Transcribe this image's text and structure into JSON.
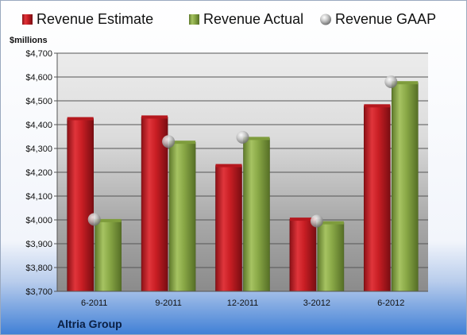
{
  "chart_data": {
    "type": "bar",
    "title": "",
    "unit_label": "$millions",
    "company": "Altria Group",
    "categories": [
      "6-2011",
      "9-2011",
      "12-2011",
      "3-2012",
      "6-2012"
    ],
    "series": [
      {
        "name": "Revenue Estimate",
        "kind": "bar",
        "color": "#d01f27",
        "values": [
          4425,
          4432,
          4228,
          4003,
          4479
        ]
      },
      {
        "name": "Revenue Actual",
        "kind": "bar",
        "color": "#8fb04a",
        "values": [
          3997,
          4326,
          4342,
          3988,
          4576
        ]
      },
      {
        "name": "Revenue GAAP",
        "kind": "marker",
        "color": "#bdbdbd",
        "values": [
          4002,
          4329,
          4347,
          3995,
          4580
        ]
      }
    ],
    "ylim": [
      3700,
      4700
    ],
    "yticks": [
      "$3,700",
      "$3,800",
      "$3,900",
      "$4,000",
      "$4,100",
      "$4,200",
      "$4,300",
      "$4,400",
      "$4,500",
      "$4,600",
      "$4,700"
    ],
    "grid": true,
    "legend_position": "top"
  },
  "legend_icons": [
    "red-square-icon",
    "green-square-icon",
    "gray-sphere-icon"
  ]
}
